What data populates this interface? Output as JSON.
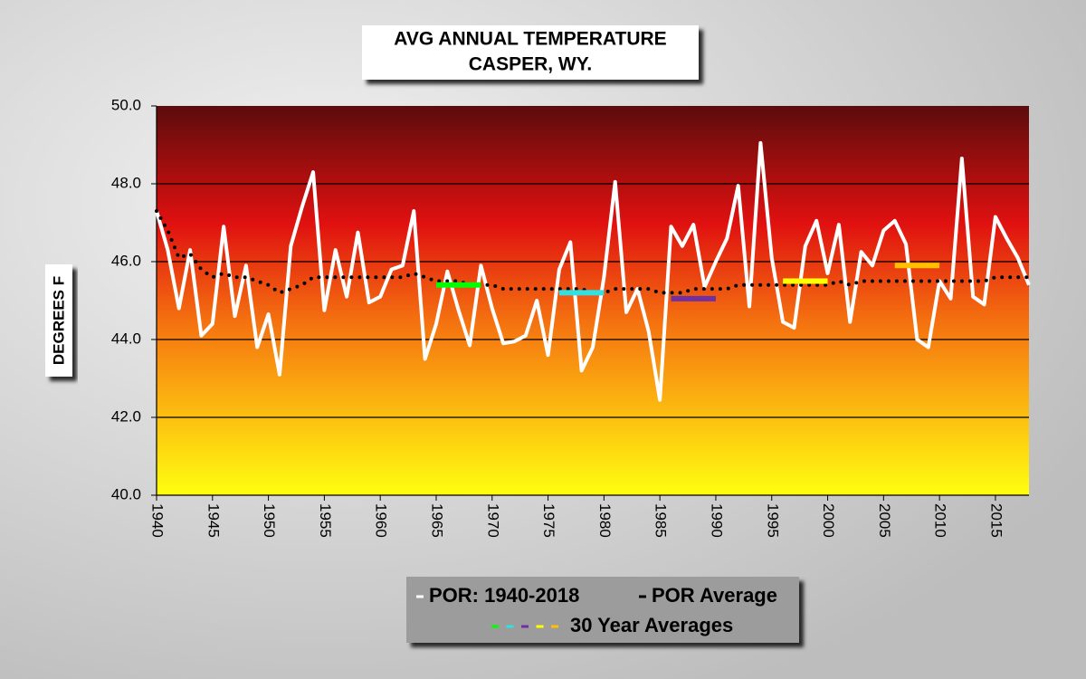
{
  "chart_data": {
    "type": "line",
    "title": "AVG ANNUAL TEMPERATURE",
    "subtitle": "CASPER, WY.",
    "y_label": "DEGREES F",
    "x": [
      1940,
      1941,
      1942,
      1943,
      1944,
      1945,
      1946,
      1947,
      1948,
      1949,
      1950,
      1951,
      1952,
      1953,
      1954,
      1955,
      1956,
      1957,
      1958,
      1959,
      1960,
      1961,
      1962,
      1963,
      1964,
      1965,
      1966,
      1967,
      1968,
      1969,
      1970,
      1971,
      1972,
      1973,
      1974,
      1975,
      1976,
      1977,
      1978,
      1979,
      1980,
      1981,
      1982,
      1983,
      1984,
      1985,
      1986,
      1987,
      1988,
      1989,
      1990,
      1991,
      1992,
      1993,
      1994,
      1995,
      1996,
      1997,
      1998,
      1999,
      2000,
      2001,
      2002,
      2003,
      2004,
      2005,
      2006,
      2007,
      2008,
      2009,
      2010,
      2011,
      2012,
      2013,
      2014,
      2015,
      2016,
      2017,
      2018
    ],
    "xlim": [
      1940,
      2018
    ],
    "xticks": [
      1940,
      1945,
      1950,
      1955,
      1960,
      1965,
      1970,
      1975,
      1980,
      1985,
      1990,
      1995,
      2000,
      2005,
      2010,
      2015
    ],
    "ylim": [
      40,
      50
    ],
    "yticks": [
      {
        "value": 40,
        "label": "40.0"
      },
      {
        "value": 42,
        "label": "42.0"
      },
      {
        "value": 44,
        "label": "44.0"
      },
      {
        "value": 46,
        "label": "46.0"
      },
      {
        "value": 48,
        "label": "48.0"
      },
      {
        "value": 50,
        "label": "50.0"
      }
    ],
    "grid": true,
    "series": [
      {
        "name": "POR: 1940-2018",
        "color": "#ffffff",
        "style": "solid",
        "values": [
          47.3,
          46.3,
          44.8,
          46.3,
          44.1,
          44.4,
          46.9,
          44.6,
          45.9,
          43.8,
          44.65,
          43.1,
          46.4,
          47.4,
          48.3,
          44.75,
          46.3,
          45.1,
          46.75,
          44.95,
          45.1,
          45.8,
          45.9,
          47.3,
          43.5,
          44.4,
          45.75,
          44.75,
          43.85,
          45.9,
          44.8,
          43.9,
          43.95,
          44.1,
          45.0,
          43.6,
          45.8,
          46.5,
          43.2,
          43.8,
          45.6,
          48.05,
          44.7,
          45.3,
          44.2,
          42.45,
          46.9,
          46.4,
          46.95,
          45.35,
          46.0,
          46.6,
          47.95,
          44.85,
          49.05,
          46.1,
          44.45,
          44.3,
          46.4,
          47.05,
          45.7,
          46.95,
          44.45,
          46.25,
          45.9,
          46.8,
          47.05,
          46.45,
          44.0,
          43.8,
          45.5,
          45.05,
          48.65,
          45.1,
          44.9,
          47.15,
          46.6,
          46.1,
          45.4
        ]
      },
      {
        "name": "POR Average",
        "color": "#000000",
        "style": "dotted",
        "values": [
          47.3,
          46.8,
          46.1,
          46.2,
          45.8,
          45.6,
          45.7,
          45.6,
          45.6,
          45.5,
          45.4,
          45.2,
          45.3,
          45.4,
          45.6,
          45.6,
          45.6,
          45.6,
          45.6,
          45.6,
          45.6,
          45.6,
          45.6,
          45.7,
          45.6,
          45.5,
          45.5,
          45.5,
          45.4,
          45.4,
          45.4,
          45.3,
          45.3,
          45.3,
          45.3,
          45.3,
          45.3,
          45.3,
          45.3,
          45.2,
          45.2,
          45.3,
          45.3,
          45.3,
          45.3,
          45.2,
          45.2,
          45.2,
          45.3,
          45.3,
          45.3,
          45.3,
          45.4,
          45.4,
          45.4,
          45.4,
          45.4,
          45.4,
          45.4,
          45.4,
          45.4,
          45.5,
          45.4,
          45.5,
          45.5,
          45.5,
          45.5,
          45.5,
          45.5,
          45.5,
          45.5,
          45.5,
          45.5,
          45.5,
          45.5,
          45.6,
          45.6,
          45.6,
          45.6
        ]
      }
    ],
    "segments": {
      "name": "30 Year Averages",
      "items": [
        {
          "color": "#00ff00",
          "start": 1965,
          "end": 1969,
          "value": 45.4
        },
        {
          "color": "#33e0e0",
          "start": 1976,
          "end": 1980,
          "value": 45.2
        },
        {
          "color": "#7030a0",
          "start": 1986,
          "end": 1990,
          "value": 45.05
        },
        {
          "color": "#ffff00",
          "start": 1996,
          "end": 2000,
          "value": 45.5
        },
        {
          "color": "#ffc000",
          "start": 2006,
          "end": 2010,
          "value": 45.9
        }
      ]
    }
  }
}
